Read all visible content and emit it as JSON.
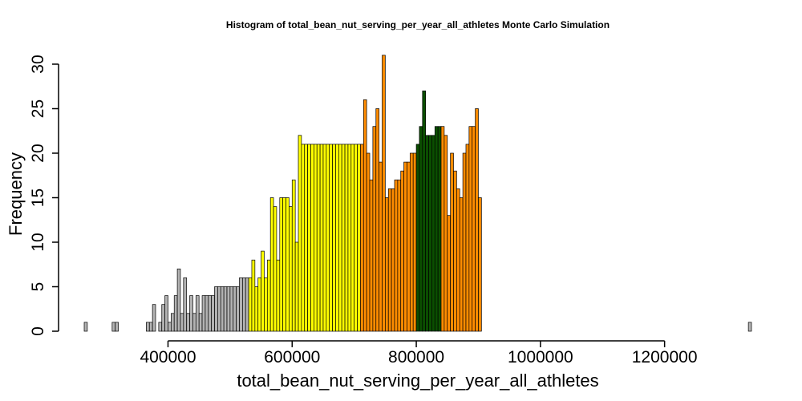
{
  "chart_data": {
    "type": "bar",
    "title": "Histogram of  total_bean_nut_serving_per_year_all_athletes  Monte Carlo Simulation",
    "xlabel": "total_bean_nut_serving_per_year_all_athletes",
    "ylabel": "Frequency",
    "xlim": [
      265000,
      1340000
    ],
    "ylim": [
      0,
      30
    ],
    "bin_width": 5000,
    "x_ticks": [
      400000,
      600000,
      800000,
      1000000,
      1200000
    ],
    "x_tick_labels": [
      "400000",
      "600000",
      "800000",
      "1000000",
      "1200000"
    ],
    "y_ticks": [
      0,
      5,
      10,
      15,
      20,
      25,
      30
    ],
    "y_tick_labels": [
      "0",
      "5",
      "10",
      "15",
      "20",
      "25",
      "30"
    ],
    "color_bands": [
      {
        "from": 265000,
        "to": 530000,
        "color": "#b3b3b3"
      },
      {
        "from": 530000,
        "to": 710000,
        "color": "#ffff00"
      },
      {
        "from": 710000,
        "to": 800000,
        "color": "#ff8c00"
      },
      {
        "from": 800000,
        "to": 840000,
        "color": "#0b4f00"
      },
      {
        "from": 840000,
        "to": 940000,
        "color": "#ff8c00"
      },
      {
        "from": 940000,
        "to": 1120000,
        "color": "#ffff00"
      },
      {
        "from": 1120000,
        "to": 1340000,
        "color": "#b3b3b3"
      }
    ],
    "bins": [
      {
        "x": 265000,
        "count": 1
      },
      {
        "x": 270000,
        "count": 0
      },
      {
        "x": 275000,
        "count": 0
      },
      {
        "x": 280000,
        "count": 0
      },
      {
        "x": 285000,
        "count": 0
      },
      {
        "x": 290000,
        "count": 0
      },
      {
        "x": 295000,
        "count": 0
      },
      {
        "x": 300000,
        "count": 0
      },
      {
        "x": 305000,
        "count": 0
      },
      {
        "x": 310000,
        "count": 1
      },
      {
        "x": 315000,
        "count": 1
      },
      {
        "x": 320000,
        "count": 0
      },
      {
        "x": 325000,
        "count": 0
      },
      {
        "x": 330000,
        "count": 0
      },
      {
        "x": 335000,
        "count": 0
      },
      {
        "x": 340000,
        "count": 0
      },
      {
        "x": 345000,
        "count": 0
      },
      {
        "x": 350000,
        "count": 0
      },
      {
        "x": 355000,
        "count": 0
      },
      {
        "x": 360000,
        "count": 0
      },
      {
        "x": 365000,
        "count": 1
      },
      {
        "x": 370000,
        "count": 1
      },
      {
        "x": 375000,
        "count": 3
      },
      {
        "x": 380000,
        "count": 0
      },
      {
        "x": 385000,
        "count": 1
      },
      {
        "x": 390000,
        "count": 3
      },
      {
        "x": 395000,
        "count": 4
      },
      {
        "x": 400000,
        "count": 1
      },
      {
        "x": 405000,
        "count": 2
      },
      {
        "x": 410000,
        "count": 4
      },
      {
        "x": 415000,
        "count": 7
      },
      {
        "x": 420000,
        "count": 2
      },
      {
        "x": 425000,
        "count": 6
      },
      {
        "x": 430000,
        "count": 2
      },
      {
        "x": 435000,
        "count": 4
      },
      {
        "x": 440000,
        "count": 2
      },
      {
        "x": 445000,
        "count": 4
      },
      {
        "x": 450000,
        "count": 2
      },
      {
        "x": 455000,
        "count": 4
      },
      {
        "x": 530000,
        "count": 6
      },
      {
        "x": 535000,
        "count": 8
      },
      {
        "x": 540000,
        "count": 5
      },
      {
        "x": 545000,
        "count": 6
      },
      {
        "x": 550000,
        "count": 9
      },
      {
        "x": 555000,
        "count": 6
      },
      {
        "x": 560000,
        "count": 8
      },
      {
        "x": 565000,
        "count": 15
      },
      {
        "x": 570000,
        "count": 14
      },
      {
        "x": 575000,
        "count": 8
      },
      {
        "x": 580000,
        "count": 15
      },
      {
        "x": 585000,
        "count": 15
      },
      {
        "x": 590000,
        "count": 15
      },
      {
        "x": 595000,
        "count": 14
      },
      {
        "x": 600000,
        "count": 17
      },
      {
        "x": 605000,
        "count": 10
      },
      {
        "x": 610000,
        "count": 22
      },
      {
        "x": 615000,
        "count": 21
      },
      {
        "x": 710000,
        "count": 21
      },
      {
        "x": 715000,
        "count": 26
      },
      {
        "x": 720000,
        "count": 20
      },
      {
        "x": 725000,
        "count": 17
      },
      {
        "x": 730000,
        "count": 23
      },
      {
        "x": 735000,
        "count": 25
      },
      {
        "x": 740000,
        "count": 19
      },
      {
        "x": 745000,
        "count": 31
      },
      {
        "x": 750000,
        "count": 15
      },
      {
        "x": 800000,
        "count": 21
      },
      {
        "x": 805000,
        "count": 23
      },
      {
        "x": 810000,
        "count": 27
      },
      {
        "x": 815000,
        "count": 22
      },
      {
        "x": 840000,
        "count": 23
      },
      {
        "x": 845000,
        "count": 22
      },
      {
        "x": 850000,
        "count": 13
      },
      {
        "x": 855000,
        "count": 20
      },
      {
        "x": 860000,
        "count": 18
      },
      {
        "x": 865000,
        "count": 16
      },
      {
        "x": 870000,
        "count": 15
      },
      {
        "x": 875000,
        "count": 20
      },
      {
        "x": 880000,
        "count": 21
      },
      {
        "x": 885000,
        "count": 23
      },
      {
        "x": 890000,
        "count": 23
      },
      {
        "x": 895000,
        "count": 25
      },
      {
        "x": 900000,
        "count": 15
      }
    ]
  }
}
